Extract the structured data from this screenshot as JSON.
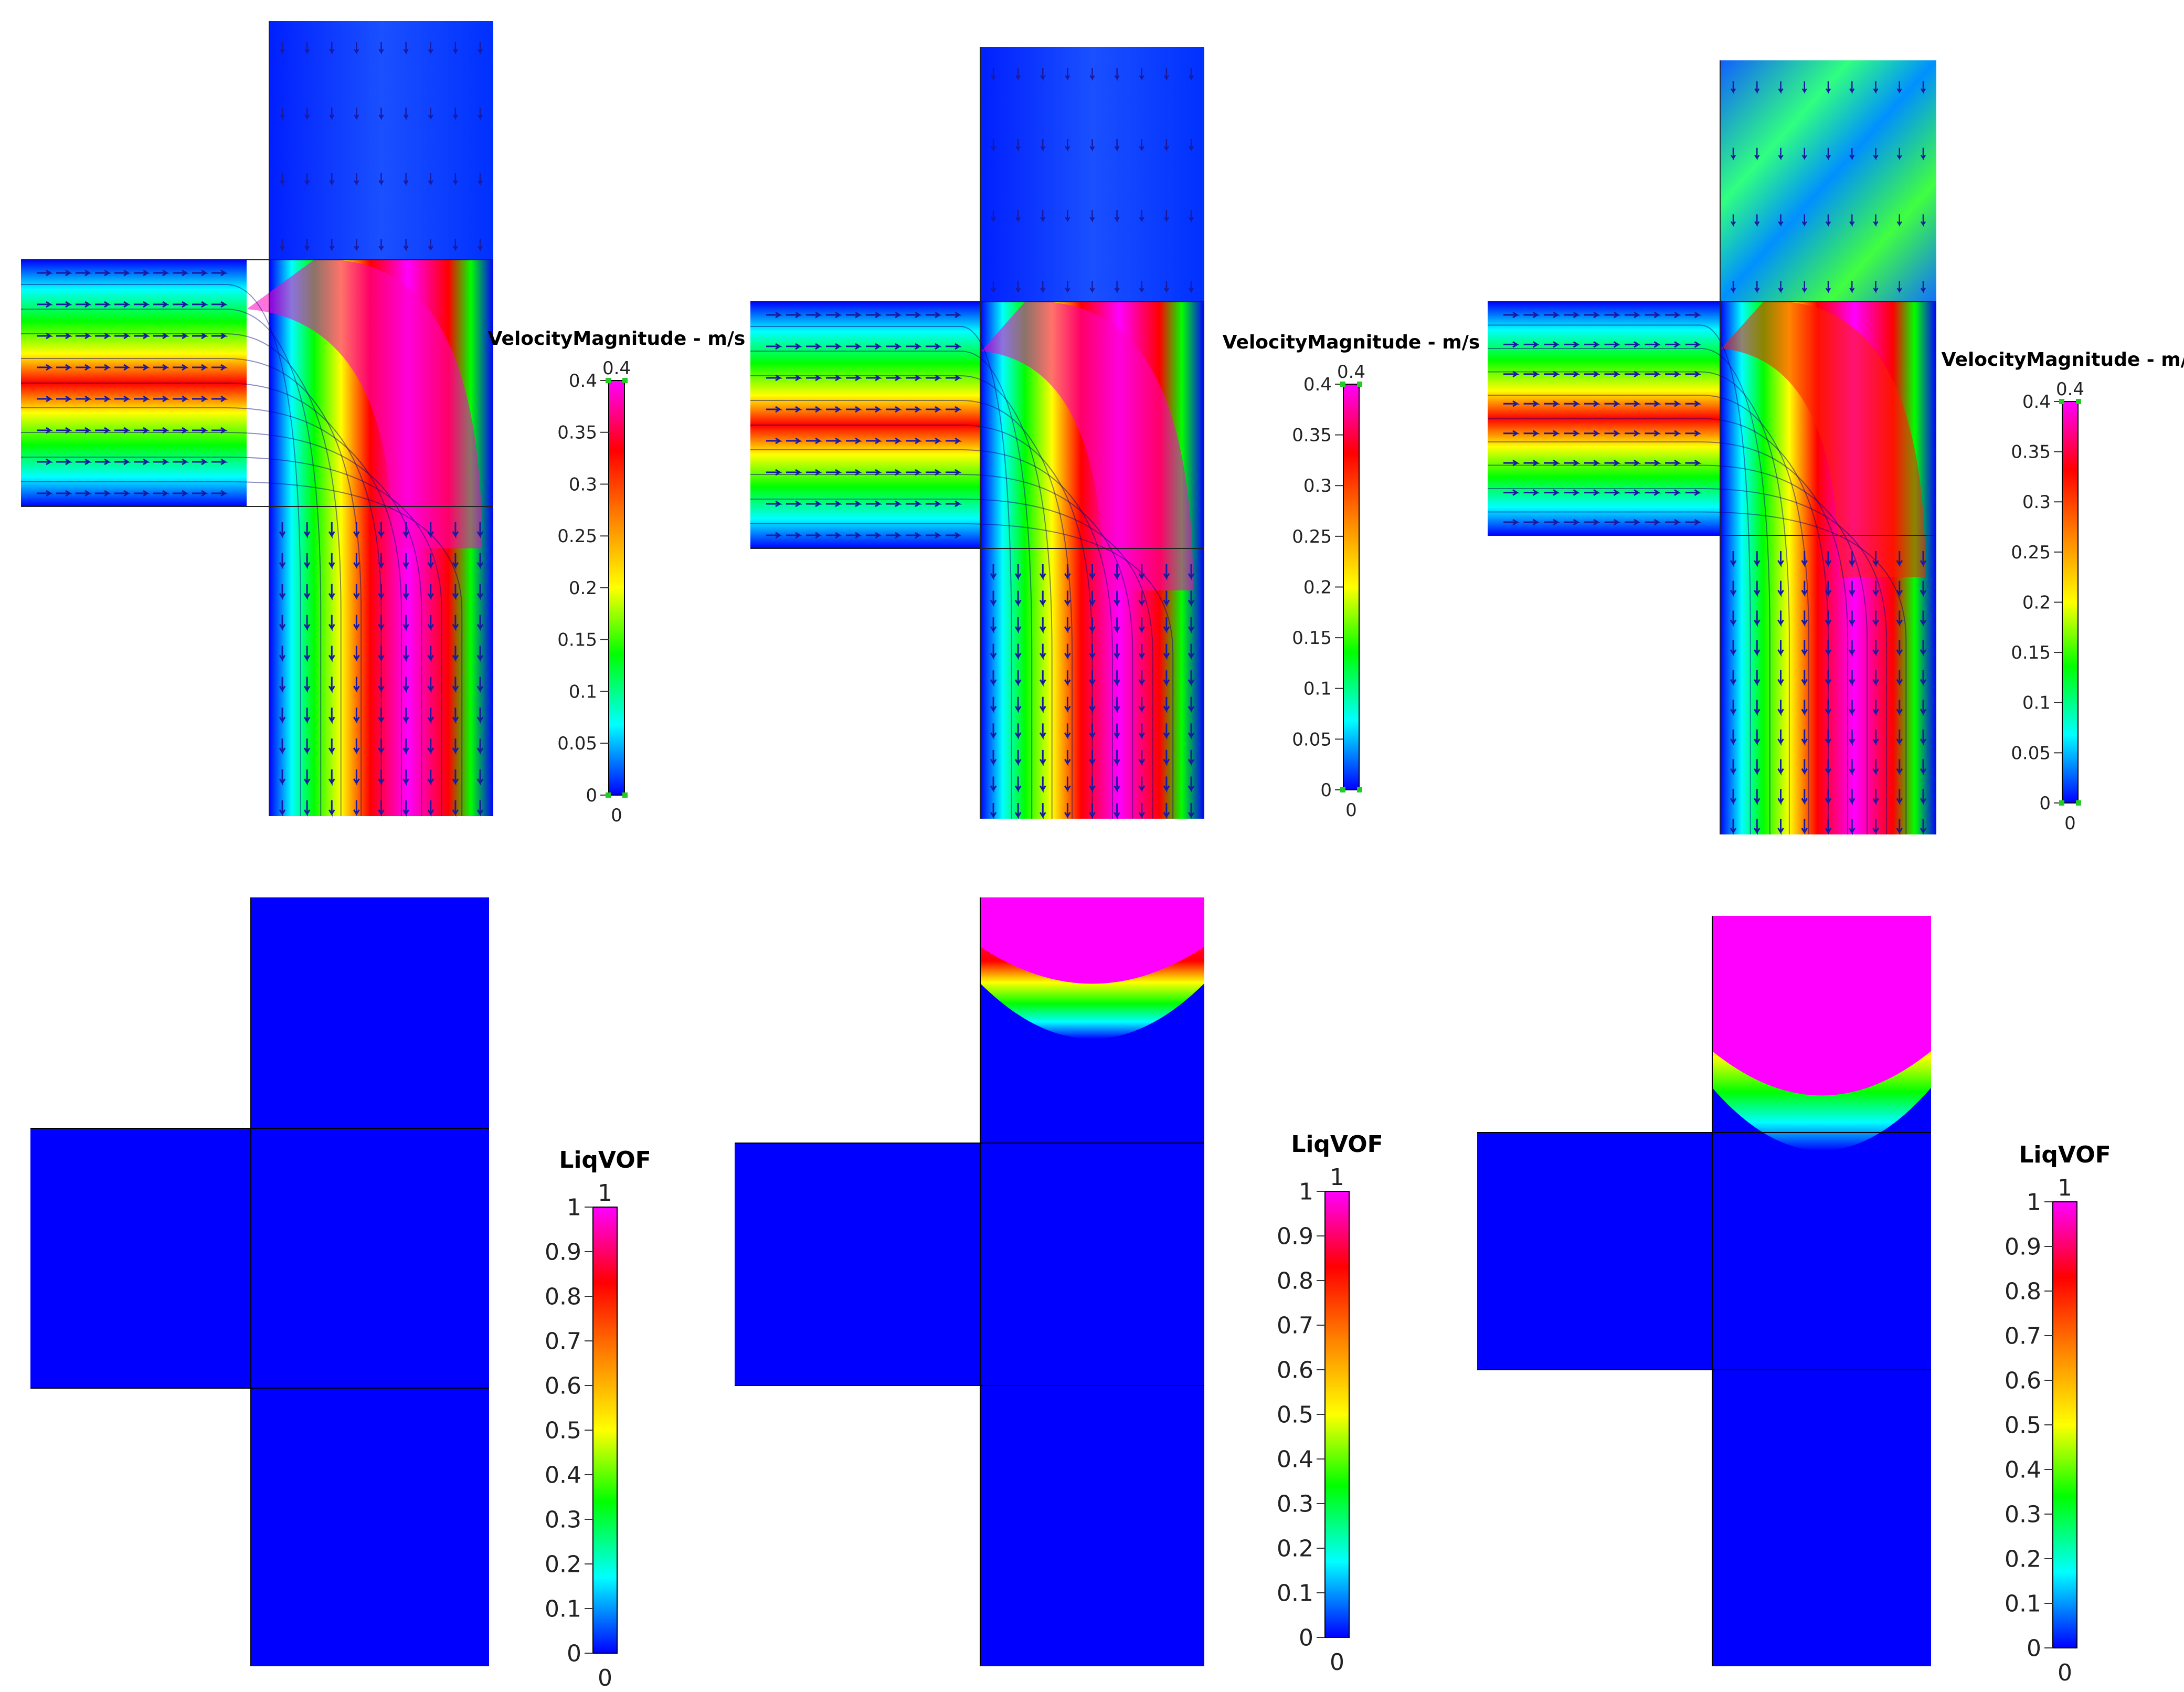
{
  "colors": {
    "scale": [
      "#0000ff",
      "#00ffff",
      "#00ff00",
      "#ffff00",
      "#ff8000",
      "#ff0000",
      "#ff00ff"
    ],
    "liquid": "#ff00ff",
    "gas": "#0000ff",
    "outline": "#000000"
  },
  "velocity_colorbar": {
    "title": "VelocityMagnitude - m/s",
    "max_label": "0.4",
    "min_label": "0",
    "ticks": [
      "0",
      "0.05",
      "0.1",
      "0.15",
      "0.2",
      "0.25",
      "0.3",
      "0.35",
      "0.4"
    ]
  },
  "vof_colorbar": {
    "title": "LiqVOF",
    "max_label": "1",
    "min_label": "0",
    "ticks": [
      "0",
      "0.1",
      "0.2",
      "0.3",
      "0.4",
      "0.5",
      "0.6",
      "0.7",
      "0.8",
      "0.9",
      "1"
    ]
  },
  "panels": [
    {
      "field": "velocity",
      "frame": 1,
      "liquid_level": 0
    },
    {
      "field": "velocity",
      "frame": 2,
      "liquid_level": 0
    },
    {
      "field": "velocity",
      "frame": 3,
      "liquid_level": 0
    },
    {
      "field": "vof",
      "frame": 1,
      "liquid_level": 0
    },
    {
      "field": "vof",
      "frame": 2,
      "liquid_level": 0.5
    },
    {
      "field": "vof",
      "frame": 3,
      "liquid_level": 0.85
    }
  ]
}
